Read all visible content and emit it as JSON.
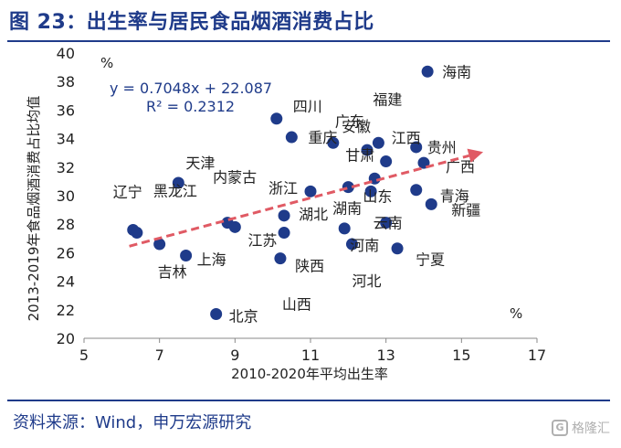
{
  "figure": {
    "title": "图 23：出生率与居民食品烟酒消费占比",
    "source": "资料来源：Wind，申万宏源研究",
    "watermark": "格隆汇",
    "unit_y": "%",
    "unit_x": "%"
  },
  "colors": {
    "title": "#1f3b8a",
    "points": "#1f3b8a",
    "trend_dash": "#e05a64",
    "arrow": "#4a7ab0",
    "text": "#222222"
  },
  "chart_data": {
    "type": "scatter",
    "xlabel": "2010-2020年平均出生率",
    "ylabel": "2013-2019年食品烟酒消费占比均值",
    "xlim": [
      5,
      17
    ],
    "ylim": [
      20,
      40
    ],
    "xticks": [
      "5",
      "7",
      "9",
      "11",
      "13",
      "15",
      "17"
    ],
    "yticks": [
      "20",
      "22",
      "24",
      "26",
      "28",
      "30",
      "32",
      "34",
      "36",
      "38",
      "40"
    ],
    "grid": false,
    "regression": {
      "equation": "y = 0.7048x + 22.087",
      "r2": "R² = 0.2312",
      "slope": 0.7048,
      "intercept": 22.087
    },
    "points": [
      {
        "label": "海南",
        "x": 14.1,
        "y": 38.7
      },
      {
        "label": "四川",
        "x": 10.1,
        "y": 35.4
      },
      {
        "label": "广东",
        "x": 11.6,
        "y": 33.7
      },
      {
        "label": "重庆",
        "x": 10.5,
        "y": 34.1
      },
      {
        "label": "福建",
        "x": 12.8,
        "y": 33.7
      },
      {
        "label": "安徽",
        "x": 12.5,
        "y": 33.2
      },
      {
        "label": "江西",
        "x": 13.0,
        "y": 32.4
      },
      {
        "label": "贵州",
        "x": 13.8,
        "y": 33.4
      },
      {
        "label": "广西",
        "x": 14.0,
        "y": 32.3
      },
      {
        "label": "甘肃",
        "x": 12.7,
        "y": 31.2
      },
      {
        "label": "天津",
        "x": 7.5,
        "y": 30.9
      },
      {
        "label": "内蒙古",
        "x": 8.8,
        "y": 28.1
      },
      {
        "label": "浙江",
        "x": 11.0,
        "y": 30.3
      },
      {
        "label": "湖南",
        "x": 12.6,
        "y": 30.3
      },
      {
        "label": "云南",
        "x": 13.0,
        "y": 28.1
      },
      {
        "label": "山东",
        "x": 12.0,
        "y": 30.6
      },
      {
        "label": "青海",
        "x": 13.8,
        "y": 30.4
      },
      {
        "label": "新疆",
        "x": 14.2,
        "y": 29.4
      },
      {
        "label": "湖北",
        "x": 10.3,
        "y": 28.6
      },
      {
        "label": "河南",
        "x": 11.9,
        "y": 27.7
      },
      {
        "label": "辽宁",
        "x": 6.3,
        "y": 27.6
      },
      {
        "label": "黑龙江",
        "x": 6.4,
        "y": 27.4
      },
      {
        "label": "江苏",
        "x": 9.0,
        "y": 27.8
      },
      {
        "label": "陕西",
        "x": 10.3,
        "y": 27.4
      },
      {
        "label": "河北",
        "x": 12.1,
        "y": 26.6
      },
      {
        "label": "宁夏",
        "x": 13.3,
        "y": 26.3
      },
      {
        "label": "吉林",
        "x": 7.0,
        "y": 26.6
      },
      {
        "label": "上海",
        "x": 7.7,
        "y": 25.8
      },
      {
        "label": "山西",
        "x": 10.2,
        "y": 25.6
      },
      {
        "label": "北京",
        "x": 8.5,
        "y": 21.7
      }
    ]
  }
}
